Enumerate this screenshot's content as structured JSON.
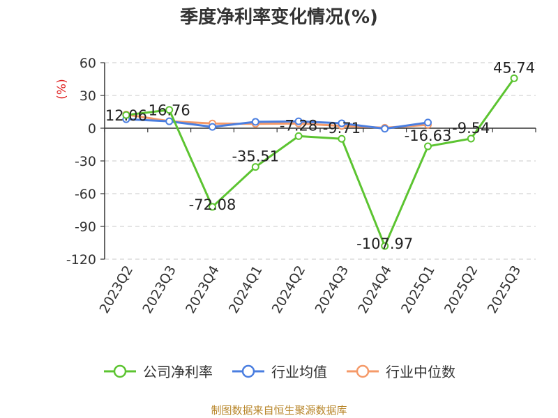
{
  "title": "季度净利率变化情况(%)",
  "source": "制图数据来自恒生聚源数据库",
  "chart_data": {
    "type": "line",
    "categories": [
      "2023Q2",
      "2023Q3",
      "2023Q4",
      "2024Q1",
      "2024Q2",
      "2024Q3",
      "2024Q4",
      "2025Q1",
      "2025Q2",
      "2025Q3"
    ],
    "ylabel": "(%)",
    "ylim": [
      -120,
      60
    ],
    "yticks": [
      60,
      30,
      0,
      -30,
      -60,
      -90,
      -120
    ],
    "ytick_labels": [
      "60",
      "30",
      "0",
      "-30",
      "-60",
      "-90",
      "-120"
    ],
    "grid": true,
    "legend_position": "bottom",
    "series": [
      {
        "name": "公司净利率",
        "color": "#5cc431",
        "values": [
          12.06,
          16.76,
          -72.08,
          -35.51,
          -7.28,
          -9.71,
          -107.97,
          -16.63,
          -9.54,
          45.74
        ],
        "labels": [
          "12.06",
          "16.76",
          "-72.08",
          "-35.51",
          "-7.28",
          "-9.71",
          "-107.97",
          "-16.63",
          "-9.54",
          "45.74"
        ]
      },
      {
        "name": "行业均值",
        "color": "#4a7ee0",
        "values": [
          8.2,
          6.3,
          1.2,
          5.8,
          6.3,
          4.5,
          -0.5,
          5.2,
          null,
          null
        ]
      },
      {
        "name": "行业中位数",
        "color": "#f59a69",
        "values": [
          12.5,
          6.4,
          4.3,
          4.0,
          4.3,
          2.1,
          0.4,
          3.1,
          null,
          null
        ]
      }
    ]
  }
}
